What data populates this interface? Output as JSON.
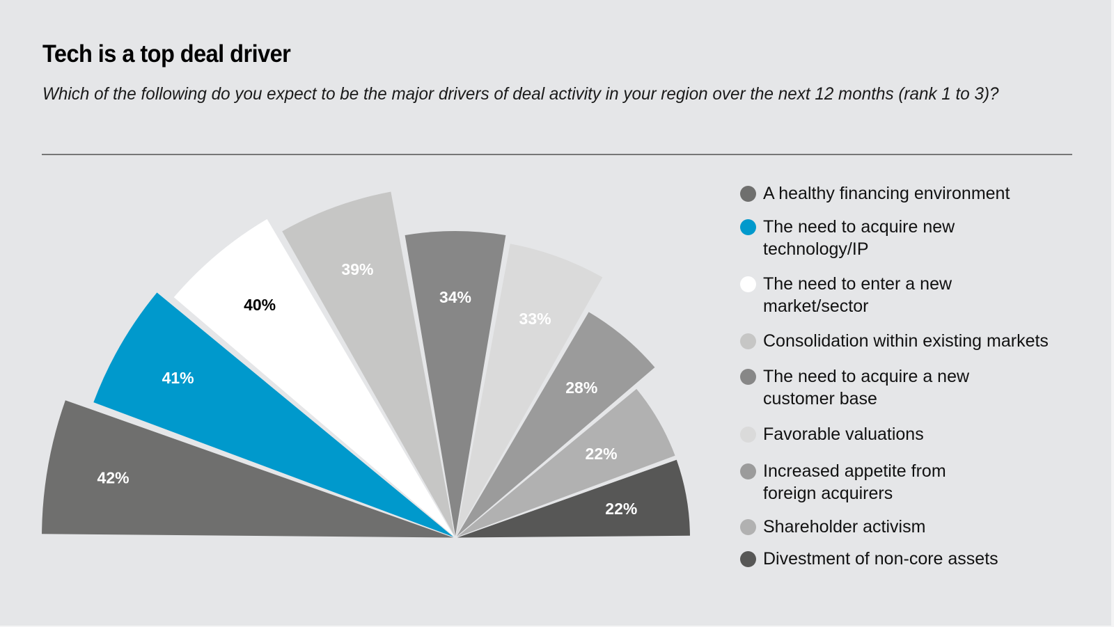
{
  "chart_data": {
    "type": "pie",
    "variant": "rose-semicircle",
    "title": "Tech is a top deal driver",
    "subtitle": "Which of the following do you expect to be the major drivers of deal activity in your region over the next 12 months (rank 1 to 3)?",
    "unit": "%",
    "legend_position": "right",
    "categories": [
      "A healthy financing environment",
      "The need to acquire new technology/IP",
      "The need to enter a new market/sector",
      "Consolidation within existing markets",
      "The need to acquire a new customer base",
      "Favorable valuations",
      "Increased appetite from foreign acquirers",
      "Shareholder activism",
      "Divestment of non-core assets"
    ],
    "values": [
      42,
      41,
      40,
      39,
      34,
      33,
      28,
      22,
      22
    ],
    "data_labels": [
      "42%",
      "41%",
      "40%",
      "39%",
      "34%",
      "33%",
      "28%",
      "22%",
      "22%"
    ],
    "colors": [
      "#6f6f6e",
      "#0099cc",
      "#ffffff",
      "#c6c6c5",
      "#878787",
      "#dadada",
      "#9b9b9b",
      "#b1b1b1",
      "#575756"
    ],
    "label_colors": [
      "#ffffff",
      "#ffffff",
      "#000000",
      "#ffffff",
      "#ffffff",
      "#ffffff",
      "#ffffff",
      "#ffffff",
      "#ffffff"
    ]
  },
  "header": {
    "title": "Tech is a top deal driver",
    "subtitle": "Which of the following do you expect to be the major drivers of deal activity in your region over the next 12 months (rank 1 to 3)?"
  },
  "legend": {
    "items": [
      {
        "label": "A healthy financing environment",
        "color": "#6f6f6e"
      },
      {
        "label": "The need to acquire new\ntechnology/IP",
        "color": "#0099cc"
      },
      {
        "label": "The need to enter a new\nmarket/sector",
        "color": "#ffffff"
      },
      {
        "label": "Consolidation within existing markets",
        "color": "#c6c6c5"
      },
      {
        "label": "The need to acquire a new\ncustomer base",
        "color": "#878787"
      },
      {
        "label": "Favorable valuations",
        "color": "#dadada"
      },
      {
        "label": "Increased appetite from\nforeign acquirers",
        "color": "#9b9b9b"
      },
      {
        "label": "Shareholder activism",
        "color": "#b1b1b1"
      },
      {
        "label": "Divestment of non-core assets",
        "color": "#575756"
      }
    ]
  }
}
